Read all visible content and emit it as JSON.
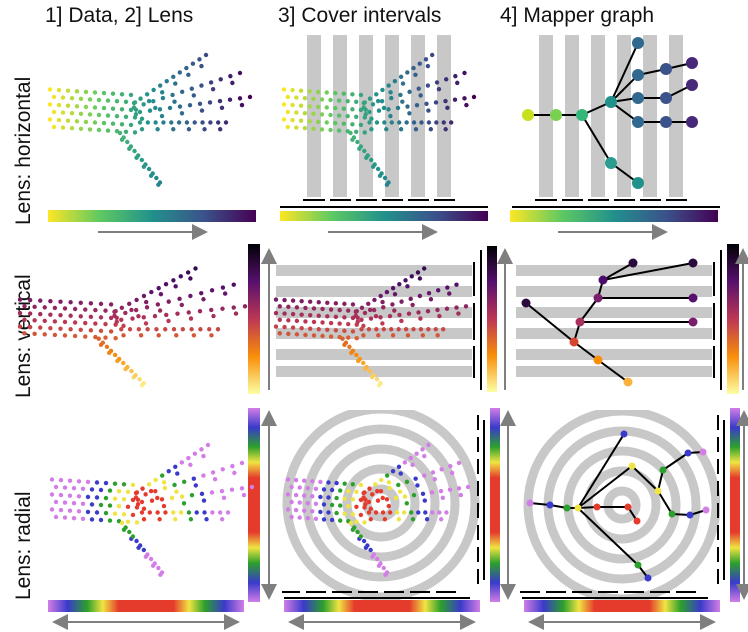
{
  "columns": [
    {
      "title": "1] Data, 2] Lens"
    },
    {
      "title": "3] Cover intervals"
    },
    {
      "title": "4] Mapper graph"
    }
  ],
  "rows": [
    {
      "label": "Lens: horizontal",
      "colormap": "viridis",
      "cover": "vertical-strips"
    },
    {
      "label": "Lens: vertical",
      "colormap": "inferno",
      "cover": "horizontal-strips"
    },
    {
      "label": "Lens: radial",
      "colormap": "rainbow",
      "cover": "concentric-rings"
    }
  ],
  "colors": {
    "cover_strip": "#c8c8c8",
    "arrow": "#7f7f7f",
    "graph_edge": "#000000"
  }
}
